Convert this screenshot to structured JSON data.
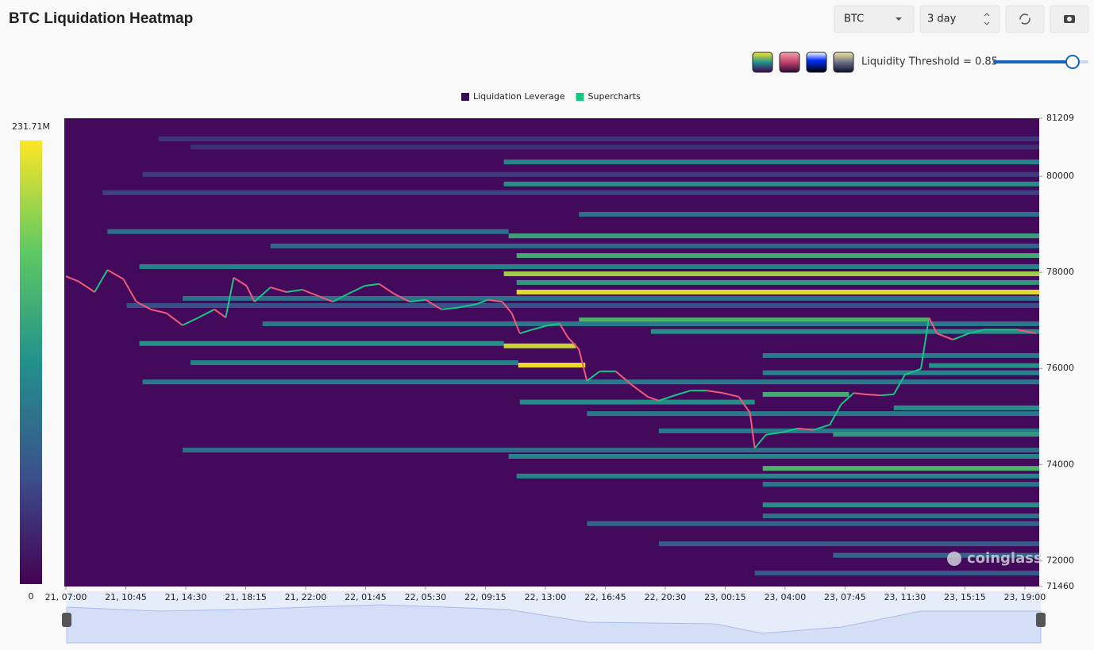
{
  "header": {
    "symbol": "BTC",
    "range": "3 day",
    "threshold_label": "Liquidity Threshold = 0.85",
    "watermark": "coinglass"
  },
  "chart_data": {
    "type": "heatmap",
    "title": "BTC Liquidation Heatmap",
    "xlim": [
      -0.1,
      60.9
    ],
    "xticks": [
      {
        "value": 0,
        "label": "21, 07:00"
      },
      {
        "value": 3.75,
        "label": "21, 10:45"
      },
      {
        "value": 7.5,
        "label": "21, 14:30"
      },
      {
        "value": 11.25,
        "label": "21, 18:15"
      },
      {
        "value": 15,
        "label": "21, 22:00"
      },
      {
        "value": 18.75,
        "label": "22, 01:45"
      },
      {
        "value": 22.5,
        "label": "22, 05:30"
      },
      {
        "value": 26.25,
        "label": "22, 09:15"
      },
      {
        "value": 30,
        "label": "22, 13:00"
      },
      {
        "value": 33.75,
        "label": "22, 16:45"
      },
      {
        "value": 37.5,
        "label": "22, 20:30"
      },
      {
        "value": 41.25,
        "label": "23, 00:15"
      },
      {
        "value": 45,
        "label": "23, 04:00"
      },
      {
        "value": 48.75,
        "label": "23, 07:45"
      },
      {
        "value": 52.5,
        "label": "23, 11:30"
      },
      {
        "value": 56.25,
        "label": "23, 15:15"
      },
      {
        "value": 60,
        "label": "23, 19:00"
      }
    ],
    "ylim": [
      71460,
      81209
    ],
    "yticks": [
      81209,
      80000,
      78000,
      76000,
      74000,
      72000,
      71460
    ],
    "colorbar": {
      "lim": [
        0,
        231.71
      ],
      "ticks": [
        {
          "value": 231.71,
          "label": "231.71M"
        },
        0
      ]
    },
    "series": [
      {
        "name": "Liquidation Leverage",
        "color": "#3b0a57",
        "price": [
          80780,
          80610,
          80300,
          80040,
          79840,
          79660,
          79210,
          78850,
          78760,
          78550,
          78350,
          78120,
          77970,
          77790,
          77590,
          77460,
          77310,
          77010,
          76930,
          76770,
          76520,
          76470,
          76270,
          76120,
          76070,
          76060,
          75910,
          75720,
          75460,
          75300,
          75180,
          75060,
          74700,
          74630,
          74300,
          74170,
          73920,
          73760,
          73590,
          73160,
          72930,
          72770,
          72350,
          72110,
          71740
        ],
        "x_start": [
          5.8,
          7.8,
          27.4,
          4.8,
          27.4,
          2.3,
          32.1,
          2.6,
          27.7,
          12.8,
          28.2,
          4.6,
          27.4,
          28.2,
          28.2,
          7.3,
          3.8,
          32.1,
          12.3,
          36.6,
          4.6,
          27.4,
          43.6,
          7.8,
          28.3,
          54.0,
          43.6,
          4.8,
          43.6,
          28.4,
          51.8,
          32.6,
          37.1,
          48.0,
          7.3,
          27.7,
          43.6,
          28.2,
          43.6,
          43.6,
          43.6,
          32.6,
          37.1,
          48.0,
          43.1
        ],
        "x_end": [
          60.9,
          60.9,
          60.9,
          60.9,
          60.9,
          60.9,
          60.9,
          27.7,
          60.9,
          60.9,
          60.9,
          60.9,
          60.9,
          60.9,
          60.9,
          60.9,
          60.9,
          54.0,
          60.9,
          60.9,
          27.4,
          31.9,
          60.9,
          28.3,
          32.5,
          60.9,
          60.9,
          60.9,
          49.0,
          43.1,
          60.9,
          60.9,
          60.9,
          60.9,
          60.9,
          60.9,
          60.9,
          60.9,
          60.9,
          60.9,
          60.9,
          60.9,
          60.9,
          60.9,
          60.9
        ],
        "values": [
          40,
          35,
          110,
          45,
          120,
          50,
          90,
          90,
          140,
          80,
          150,
          110,
          200,
          130,
          225,
          90,
          60,
          160,
          100,
          120,
          120,
          215,
          100,
          110,
          230,
          120,
          110,
          100,
          150,
          120,
          120,
          100,
          100,
          130,
          90,
          110,
          160,
          110,
          100,
          120,
          90,
          80,
          70,
          80,
          70
        ]
      },
      {
        "name": "Supercharts",
        "color": "#16c784",
        "x": [
          0,
          0.8,
          1.8,
          2.6,
          3.6,
          4.4,
          5.3,
          6.3,
          7.3,
          8.3,
          9.3,
          10.0,
          10.5,
          11.3,
          11.8,
          12.8,
          13.8,
          14.8,
          15.7,
          16.7,
          17.7,
          18.7,
          19.6,
          20.5,
          21.5,
          22.5,
          23.5,
          24.4,
          25.7,
          26.4,
          27.3,
          27.9,
          28.4,
          29.2,
          30.2,
          30.9,
          31.4,
          32.1,
          32.6,
          33.4,
          34.4,
          35.4,
          36.4,
          37.1,
          38.1,
          39.1,
          40.1,
          41.1,
          42.1,
          42.8,
          43.1,
          43.8,
          44.8,
          45.8,
          46.8,
          47.8,
          48.5,
          49.3,
          50.0,
          51.0,
          51.8,
          52.5,
          53.5,
          54.0,
          54.5,
          55.5,
          56.5,
          57.5,
          58.5,
          59.5,
          60.7
        ],
        "values": [
          77920,
          77810,
          77590,
          78050,
          77860,
          77390,
          77230,
          77150,
          76900,
          77060,
          77230,
          77060,
          77890,
          77720,
          77390,
          77690,
          77590,
          77640,
          77520,
          77390,
          77560,
          77720,
          77760,
          77560,
          77390,
          77430,
          77230,
          77260,
          77340,
          77430,
          77390,
          77150,
          76730,
          76810,
          76900,
          76930,
          76650,
          76400,
          75740,
          75940,
          75940,
          75660,
          75410,
          75330,
          75440,
          75540,
          75540,
          75490,
          75410,
          75080,
          74340,
          74620,
          74670,
          74750,
          74720,
          74830,
          75250,
          75490,
          75460,
          75440,
          75460,
          75870,
          75990,
          77060,
          76730,
          76600,
          76730,
          76810,
          76810,
          76810,
          76730
        ]
      }
    ]
  }
}
